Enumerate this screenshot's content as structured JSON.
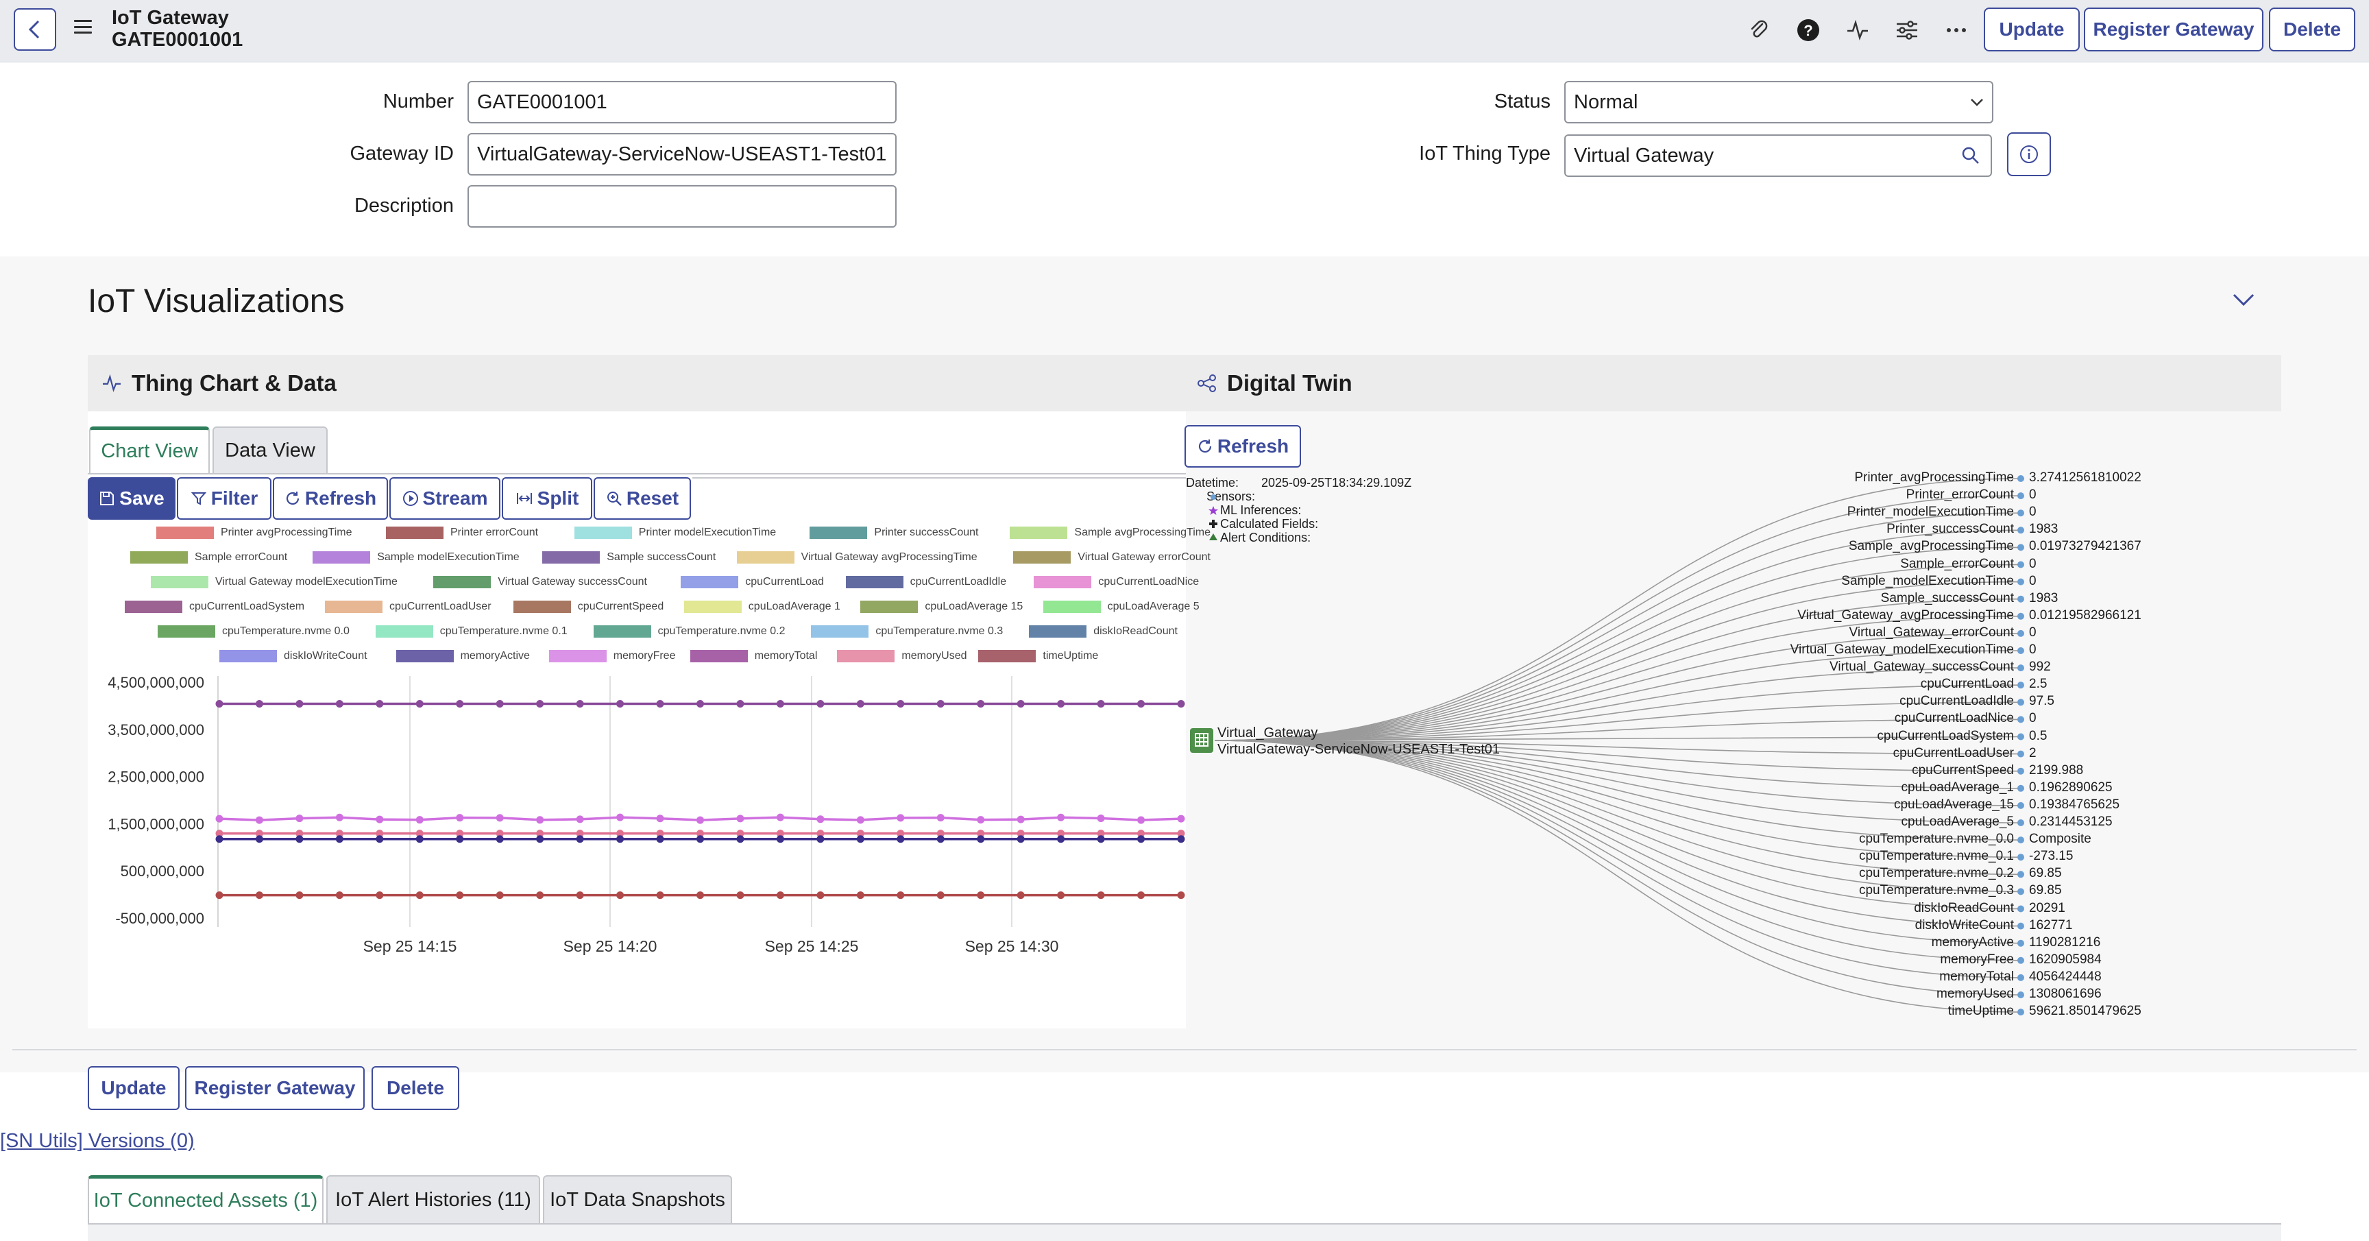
{
  "header": {
    "title": "IoT Gateway",
    "number": "GATE0001001",
    "buttons": {
      "update": "Update",
      "register": "Register Gateway",
      "delete": "Delete"
    },
    "icons": [
      "paperclip-icon",
      "help-icon",
      "activity-icon",
      "settings-sliders-icon",
      "more-icon"
    ]
  },
  "form": {
    "number_label": "Number",
    "number_value": "GATE0001001",
    "gateway_label": "Gateway ID",
    "gateway_value": "VirtualGateway-ServiceNow-USEAST1-Test01",
    "description_label": "Description",
    "description_value": "",
    "status_label": "Status",
    "status_value": "Normal",
    "thing_type_label": "IoT Thing Type",
    "thing_type_value": "Virtual Gateway"
  },
  "viz": {
    "title": "IoT Visualizations",
    "chart_panel_title": "Thing Chart & Data",
    "twin_panel_title": "Digital Twin",
    "tabs": {
      "chart": "Chart View",
      "data": "Data View"
    },
    "toolbar": {
      "save": "Save",
      "filter": "Filter",
      "refresh": "Refresh",
      "stream": "Stream",
      "split": "Split",
      "reset": "Reset"
    }
  },
  "legend": [
    {
      "name": "Printer avgProcessingTime",
      "color": "#d9534f"
    },
    {
      "name": "Printer errorCount",
      "color": "#8b2e2e"
    },
    {
      "name": "Printer modelExecutionTime",
      "color": "#7fd6d6"
    },
    {
      "name": "Printer successCount",
      "color": "#2e7d7d"
    },
    {
      "name": "Sample avgProcessingTime",
      "color": "#a8d86e"
    },
    {
      "name": "Sample errorCount",
      "color": "#6b8e23"
    },
    {
      "name": "Sample modelExecutionTime",
      "color": "#9b59d0"
    },
    {
      "name": "Sample successCount",
      "color": "#5b3a8a"
    },
    {
      "name": "Virtual Gateway avgProcessingTime",
      "color": "#e0c070"
    },
    {
      "name": "Virtual Gateway errorCount",
      "color": "#8a7a30"
    },
    {
      "name": "Virtual Gateway modelExecutionTime",
      "color": "#8fe08f"
    },
    {
      "name": "Virtual Gateway successCount",
      "color": "#2e7d3a"
    },
    {
      "name": "cpuCurrentLoad",
      "color": "#6f7fe0"
    },
    {
      "name": "cpuCurrentLoadIdle",
      "color": "#2e3a80"
    },
    {
      "name": "cpuCurrentLoadNice",
      "color": "#e070c8"
    },
    {
      "name": "cpuCurrentLoadSystem",
      "color": "#7a2e6e"
    },
    {
      "name": "cpuCurrentLoadUser",
      "color": "#e0a070"
    },
    {
      "name": "cpuCurrentSpeed",
      "color": "#8b4a2e"
    },
    {
      "name": "cpuLoadAverage 1",
      "color": "#d8e070"
    },
    {
      "name": "cpuLoadAverage 15",
      "color": "#6e8a2e"
    },
    {
      "name": "cpuLoadAverage 5",
      "color": "#70e070"
    },
    {
      "name": "cpuTemperature.nvme 0.0",
      "color": "#3a8a2e"
    },
    {
      "name": "cpuTemperature.nvme 0.1",
      "color": "#70e0b0"
    },
    {
      "name": "cpuTemperature.nvme 0.2",
      "color": "#2e8a6e"
    },
    {
      "name": "cpuTemperature.nvme 0.3",
      "color": "#70b0e0"
    },
    {
      "name": "diskIoReadCount",
      "color": "#2e5a8a"
    },
    {
      "name": "diskIoWriteCount",
      "color": "#7070e0"
    },
    {
      "name": "memoryActive",
      "color": "#3a2e8a"
    },
    {
      "name": "memoryFree",
      "color": "#d070e0"
    },
    {
      "name": "memoryTotal",
      "color": "#8a2e8a"
    },
    {
      "name": "memoryUsed",
      "color": "#e07090"
    },
    {
      "name": "timeUptime",
      "color": "#8a2e3a"
    }
  ],
  "chart_data": {
    "type": "line",
    "y_ticks": [
      "4,500,000,000",
      "3,500,000,000",
      "2,500,000,000",
      "1,500,000,000",
      "500,000,000",
      "-500,000,000"
    ],
    "x_ticks": [
      "Sep 25 14:15",
      "Sep 25 14:20",
      "Sep 25 14:25",
      "Sep 25 14:30"
    ],
    "ylim": [
      -500000000,
      4500000000
    ],
    "grid": true,
    "series": [
      {
        "name": "memoryTotal",
        "color": "#8a4a9a",
        "value": 4056424448
      },
      {
        "name": "memoryFree",
        "color": "#d070e0",
        "value": 1620905984
      },
      {
        "name": "memoryUsed",
        "color": "#e07090",
        "value": 1308061696
      },
      {
        "name": "memoryActive",
        "color": "#3a2e8a",
        "value": 1190281216
      },
      {
        "name": "timeUptime",
        "color": "#b04a4a",
        "value": 59621
      }
    ]
  },
  "twin": {
    "refresh": "Refresh",
    "datetime_label": "Datetime:",
    "datetime_value": "2025-09-25T18:34:29.109Z",
    "meta": [
      "Sensors:",
      "ML Inferences:",
      "Calculated Fields:",
      "Alert Conditions:"
    ],
    "node_name": "Virtual_Gateway",
    "node_id": "VirtualGateway-ServiceNow-USEAST1-Test01",
    "rows": [
      {
        "k": "Printer_avgProcessingTime",
        "v": "3.27412561810022"
      },
      {
        "k": "Printer_errorCount",
        "v": "0"
      },
      {
        "k": "Printer_modelExecutionTime",
        "v": "0"
      },
      {
        "k": "Printer_successCount",
        "v": "1983"
      },
      {
        "k": "Sample_avgProcessingTime",
        "v": "0.01973279421367"
      },
      {
        "k": "Sample_errorCount",
        "v": "0"
      },
      {
        "k": "Sample_modelExecutionTime",
        "v": "0"
      },
      {
        "k": "Sample_successCount",
        "v": "1983"
      },
      {
        "k": "Virtual_Gateway_avgProcessingTime",
        "v": "0.01219582966121"
      },
      {
        "k": "Virtual_Gateway_errorCount",
        "v": "0"
      },
      {
        "k": "Virtual_Gateway_modelExecutionTime",
        "v": "0"
      },
      {
        "k": "Virtual_Gateway_successCount",
        "v": "992"
      },
      {
        "k": "cpuCurrentLoad",
        "v": "2.5"
      },
      {
        "k": "cpuCurrentLoadIdle",
        "v": "97.5"
      },
      {
        "k": "cpuCurrentLoadNice",
        "v": "0"
      },
      {
        "k": "cpuCurrentLoadSystem",
        "v": "0.5"
      },
      {
        "k": "cpuCurrentLoadUser",
        "v": "2"
      },
      {
        "k": "cpuCurrentSpeed",
        "v": "2199.988"
      },
      {
        "k": "cpuLoadAverage_1",
        "v": "0.1962890625"
      },
      {
        "k": "cpuLoadAverage_15",
        "v": "0.19384765625"
      },
      {
        "k": "cpuLoadAverage_5",
        "v": "0.2314453125"
      },
      {
        "k": "cpuTemperature.nvme_0.0",
        "v": "Composite"
      },
      {
        "k": "cpuTemperature.nvme_0.1",
        "v": "-273.15"
      },
      {
        "k": "cpuTemperature.nvme_0.2",
        "v": "69.85"
      },
      {
        "k": "cpuTemperature.nvme_0.3",
        "v": "69.85"
      },
      {
        "k": "diskIoReadCount",
        "v": "20291"
      },
      {
        "k": "diskIoWriteCount",
        "v": "162771"
      },
      {
        "k": "memoryActive",
        "v": "1190281216"
      },
      {
        "k": "memoryFree",
        "v": "1620905984"
      },
      {
        "k": "memoryTotal",
        "v": "4056424448"
      },
      {
        "k": "memoryUsed",
        "v": "1308061696"
      },
      {
        "k": "timeUptime",
        "v": "59621.8501479625"
      }
    ]
  },
  "footer": {
    "update": "Update",
    "register": "Register Gateway",
    "delete": "Delete",
    "versions": "[SN Utils] Versions (0)",
    "tabs": [
      "IoT Connected Assets (1)",
      "IoT Alert Histories (11)",
      "IoT Data Snapshots"
    ]
  },
  "colors": {
    "accent": "#3d4b9b",
    "active_tab": "#2e7d5b"
  }
}
